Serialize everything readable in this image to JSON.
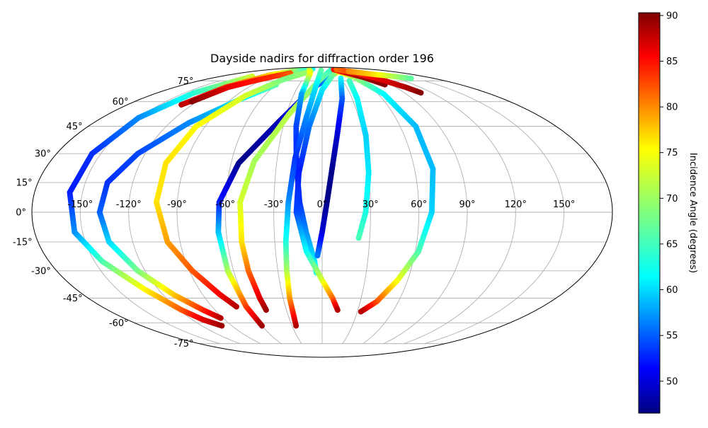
{
  "chart_data": {
    "type": "scatter",
    "projection": "mollweide",
    "title": "Dayside nadirs for diffraction order 196",
    "grid": true,
    "lon_ticks": [
      -150,
      -120,
      -90,
      -60,
      -30,
      0,
      30,
      60,
      90,
      120,
      150
    ],
    "lon_tick_labels": [
      "-150°",
      "-120°",
      "-90°",
      "-60°",
      "-30°",
      "0°",
      "30°",
      "60°",
      "90°",
      "120°",
      "150°"
    ],
    "lat_ticks": [
      75,
      60,
      45,
      30,
      15,
      0,
      -15,
      -30,
      -45,
      -60,
      -75
    ],
    "lat_tick_labels": [
      "75°",
      "60°",
      "45°",
      "30°",
      "15°",
      "0°",
      "-15°",
      "-30°",
      "-45°",
      "-60°",
      "-75°"
    ],
    "colorbar": {
      "label": "Incidence Angle (degrees)",
      "colormap": "jet",
      "range": [
        46.5,
        90.3
      ],
      "ticks": [
        50,
        55,
        60,
        65,
        70,
        75,
        80,
        85,
        90
      ],
      "tick_labels": [
        "50",
        "55",
        "60",
        "65",
        "70",
        "75",
        "80",
        "85",
        "90"
      ],
      "placement": "right"
    },
    "series": [
      {
        "points": [
          {
            "lon": -125,
            "lat": 79,
            "inc": 72
          },
          {
            "lon": -140,
            "lat": 66,
            "inc": 65
          },
          {
            "lon": -150,
            "lat": 50,
            "inc": 58
          },
          {
            "lon": -156,
            "lat": 30,
            "inc": 54
          },
          {
            "lon": -158,
            "lat": 10,
            "inc": 53
          },
          {
            "lon": -155,
            "lat": -10,
            "inc": 58
          },
          {
            "lon": -145,
            "lat": -25,
            "inc": 66
          },
          {
            "lon": -130,
            "lat": -40,
            "inc": 74
          },
          {
            "lon": -118,
            "lat": -52,
            "inc": 81
          },
          {
            "lon": -110,
            "lat": -58,
            "inc": 86
          },
          {
            "lon": -100,
            "lat": -62,
            "inc": 89
          }
        ]
      },
      {
        "points": [
          {
            "lon": -130,
            "lat": 58,
            "inc": 88
          },
          {
            "lon": -118,
            "lat": 70,
            "inc": 82
          },
          {
            "lon": -100,
            "lat": 80,
            "inc": 76
          },
          {
            "lon": -80,
            "lat": 84,
            "inc": 70
          },
          {
            "lon": -60,
            "lat": 86,
            "inc": 66
          },
          {
            "lon": -40,
            "lat": 87,
            "inc": 63
          }
        ]
      },
      {
        "points": [
          {
            "lon": -60,
            "lat": 72,
            "inc": 67
          },
          {
            "lon": -82,
            "lat": 61,
            "inc": 62
          },
          {
            "lon": -105,
            "lat": 47,
            "inc": 58
          },
          {
            "lon": -125,
            "lat": 30,
            "inc": 55
          },
          {
            "lon": -136,
            "lat": 15,
            "inc": 54
          },
          {
            "lon": -138,
            "lat": 0,
            "inc": 56
          },
          {
            "lon": -135,
            "lat": -15,
            "inc": 61
          },
          {
            "lon": -125,
            "lat": -30,
            "inc": 68
          },
          {
            "lon": -112,
            "lat": -43,
            "inc": 76
          },
          {
            "lon": -100,
            "lat": -52,
            "inc": 83
          },
          {
            "lon": -92,
            "lat": -57,
            "inc": 88
          }
        ]
      },
      {
        "points": [
          {
            "lon": -125,
            "lat": 60,
            "inc": 90
          },
          {
            "lon": -115,
            "lat": 70,
            "inc": 86
          },
          {
            "lon": -100,
            "lat": 75,
            "inc": 84
          },
          {
            "lon": -85,
            "lat": 79,
            "inc": 83
          },
          {
            "lon": -70,
            "lat": 82,
            "inc": 81
          }
        ]
      },
      {
        "points": [
          {
            "lon": -30,
            "lat": 84,
            "inc": 70
          },
          {
            "lon": -60,
            "lat": 76,
            "inc": 68
          },
          {
            "lon": -80,
            "lat": 64,
            "inc": 72
          },
          {
            "lon": -97,
            "lat": 45,
            "inc": 74
          },
          {
            "lon": -103,
            "lat": 25,
            "inc": 75
          },
          {
            "lon": -103,
            "lat": 5,
            "inc": 75
          },
          {
            "lon": -98,
            "lat": -15,
            "inc": 78
          },
          {
            "lon": -88,
            "lat": -30,
            "inc": 81
          },
          {
            "lon": -77,
            "lat": -43,
            "inc": 85
          },
          {
            "lon": -70,
            "lat": -50,
            "inc": 88
          }
        ]
      },
      {
        "points": [
          {
            "lon": 10,
            "lat": 77,
            "inc": 60
          },
          {
            "lon": -10,
            "lat": 70,
            "inc": 55
          },
          {
            "lon": -35,
            "lat": 47,
            "inc": 49
          },
          {
            "lon": -55,
            "lat": 25,
            "inc": 47
          },
          {
            "lon": -64,
            "lat": 5,
            "inc": 53
          },
          {
            "lon": -65,
            "lat": -10,
            "inc": 60
          },
          {
            "lon": -64,
            "lat": -30,
            "inc": 70
          },
          {
            "lon": -62,
            "lat": -50,
            "inc": 82
          },
          {
            "lon": -60,
            "lat": -62,
            "inc": 89
          }
        ]
      },
      {
        "points": [
          {
            "lon": 25,
            "lat": 85,
            "inc": 65
          },
          {
            "lon": -5,
            "lat": 75,
            "inc": 68
          },
          {
            "lon": -28,
            "lat": 52,
            "inc": 71
          },
          {
            "lon": -45,
            "lat": 26,
            "inc": 70
          },
          {
            "lon": -51,
            "lat": 5,
            "inc": 72
          },
          {
            "lon": -51,
            "lat": -15,
            "inc": 75
          },
          {
            "lon": -50,
            "lat": -30,
            "inc": 80
          },
          {
            "lon": -48,
            "lat": -45,
            "inc": 86
          },
          {
            "lon": -47,
            "lat": -52,
            "inc": 89
          }
        ]
      },
      {
        "points": [
          {
            "lon": -45,
            "lat": 86,
            "inc": 71
          },
          {
            "lon": -25,
            "lat": 81,
            "inc": 74
          },
          {
            "lon": -22,
            "lat": 65,
            "inc": 59
          },
          {
            "lon": -20,
            "lat": 45,
            "inc": 55
          },
          {
            "lon": -17,
            "lat": 25,
            "inc": 53
          },
          {
            "lon": -14,
            "lat": 5,
            "inc": 54
          },
          {
            "lon": -10,
            "lat": -10,
            "inc": 58
          },
          {
            "lon": -5,
            "lat": -25,
            "inc": 62
          },
          {
            "lon": -4,
            "lat": -31,
            "inc": 64
          }
        ]
      },
      {
        "points": [
          {
            "lon": -3,
            "lat": 85,
            "inc": 67
          },
          {
            "lon": -8,
            "lat": 70,
            "inc": 62
          },
          {
            "lon": -13,
            "lat": 50,
            "inc": 58
          },
          {
            "lon": -18,
            "lat": 28,
            "inc": 54
          },
          {
            "lon": -21,
            "lat": 5,
            "inc": 58
          },
          {
            "lon": -23,
            "lat": -15,
            "inc": 64
          },
          {
            "lon": -24,
            "lat": -30,
            "inc": 70
          },
          {
            "lon": -25,
            "lat": -45,
            "inc": 78
          },
          {
            "lon": -26,
            "lat": -62,
            "inc": 88
          }
        ]
      },
      {
        "points": [
          {
            "lon": 45,
            "lat": 84,
            "inc": 75
          },
          {
            "lon": 20,
            "lat": 80,
            "inc": 68
          },
          {
            "lon": 0,
            "lat": 68,
            "inc": 62
          },
          {
            "lon": -10,
            "lat": 45,
            "inc": 57
          },
          {
            "lon": -15,
            "lat": 20,
            "inc": 53
          },
          {
            "lon": -16,
            "lat": 0,
            "inc": 55
          },
          {
            "lon": -10,
            "lat": -20,
            "inc": 63
          },
          {
            "lon": 0,
            "lat": -35,
            "inc": 72
          },
          {
            "lon": 8,
            "lat": -45,
            "inc": 80
          },
          {
            "lon": 13,
            "lat": -52,
            "inc": 88
          }
        ]
      },
      {
        "points": [
          {
            "lon": 30,
            "lat": 77,
            "inc": 63
          },
          {
            "lon": 20,
            "lat": 62,
            "inc": 56
          },
          {
            "lon": 11,
            "lat": 40,
            "inc": 50
          },
          {
            "lon": 6,
            "lat": 20,
            "inc": 47
          },
          {
            "lon": 3,
            "lat": 5,
            "inc": 47
          },
          {
            "lon": 0,
            "lat": -10,
            "inc": 50
          },
          {
            "lon": -3,
            "lat": -22,
            "inc": 57
          }
        ]
      },
      {
        "points": [
          {
            "lon": 40,
            "lat": 75,
            "inc": 66
          },
          {
            "lon": 35,
            "lat": 62,
            "inc": 63
          },
          {
            "lon": 32,
            "lat": 40,
            "inc": 61
          },
          {
            "lon": 30,
            "lat": 20,
            "inc": 62
          },
          {
            "lon": 27,
            "lat": 0,
            "inc": 64
          },
          {
            "lon": 23,
            "lat": -13,
            "inc": 66
          }
        ]
      },
      {
        "points": [
          {
            "lon": 40,
            "lat": 84,
            "inc": 75
          },
          {
            "lon": 55,
            "lat": 78,
            "inc": 70
          },
          {
            "lon": 66,
            "lat": 65,
            "inc": 63
          },
          {
            "lon": 72,
            "lat": 45,
            "inc": 60
          },
          {
            "lon": 72,
            "lat": 22,
            "inc": 60
          },
          {
            "lon": 68,
            "lat": 0,
            "inc": 61
          },
          {
            "lon": 62,
            "lat": -20,
            "inc": 66
          },
          {
            "lon": 53,
            "lat": -35,
            "inc": 73
          },
          {
            "lon": 43,
            "lat": -47,
            "inc": 81
          },
          {
            "lon": 33,
            "lat": -53,
            "inc": 88
          }
        ]
      },
      {
        "points": [
          {
            "lon": 40,
            "lat": 86,
            "inc": 84
          },
          {
            "lon": 55,
            "lat": 82,
            "inc": 87
          },
          {
            "lon": 70,
            "lat": 78,
            "inc": 89
          },
          {
            "lon": 82,
            "lat": 72,
            "inc": 90
          }
        ]
      },
      {
        "points": [
          {
            "lon": 50,
            "lat": 86,
            "inc": 80
          },
          {
            "lon": 75,
            "lat": 82,
            "inc": 83
          },
          {
            "lon": 90,
            "lat": 76,
            "inc": 86
          },
          {
            "lon": 102,
            "lat": 70,
            "inc": 88
          },
          {
            "lon": 108,
            "lat": 66,
            "inc": 90
          }
        ]
      },
      {
        "points": [
          {
            "lon": 70,
            "lat": 84,
            "inc": 79
          },
          {
            "lon": 100,
            "lat": 81,
            "inc": 76
          },
          {
            "lon": 125,
            "lat": 79,
            "inc": 71
          },
          {
            "lon": 143,
            "lat": 77,
            "inc": 67
          }
        ]
      }
    ]
  }
}
